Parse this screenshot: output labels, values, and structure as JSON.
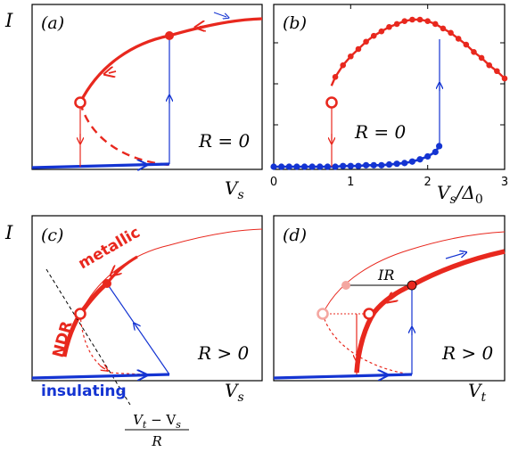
{
  "colors": {
    "red": "#e8281e",
    "blue": "#1434d2",
    "pale_red": "#f4a7a1",
    "black": "#000000"
  },
  "panels": {
    "a": {
      "label": "(a)",
      "y_label": "I",
      "x_label": "V",
      "x_sub": "s",
      "condition": "R = 0"
    },
    "b": {
      "label": "(b)",
      "condition": "R = 0",
      "x_label": "V",
      "x_sub": "s",
      "x_div": "/Δ",
      "x_div_sub": "0",
      "x_ticks": [
        "0",
        "1",
        "2",
        "3"
      ]
    },
    "c": {
      "label": "(c)",
      "y_label": "I",
      "x_label": "V",
      "x_sub": "s",
      "condition": "R > 0",
      "metallic": "metallic",
      "ndr": "NDR",
      "insulating": "insulating",
      "fraction_num": "V",
      "fraction_num_sub1": "t",
      "fraction_minus": " − V",
      "fraction_num_sub2": "s",
      "fraction_den": "R"
    },
    "d": {
      "label": "(d)",
      "x_label": "V",
      "x_sub": "t",
      "condition": "R > 0",
      "ir_label": "IR"
    }
  },
  "chart_data": [
    {
      "type": "line",
      "panel": "b",
      "title": "",
      "xlabel": "Vs/Δ0",
      "xlim": [
        0,
        3
      ],
      "series": [
        {
          "name": "",
          "color": "#e8281e",
          "x": [
            0.75,
            0.8,
            0.9,
            1.0,
            1.1,
            1.2,
            1.3,
            1.4,
            1.5,
            1.6,
            1.7,
            1.8,
            1.9,
            2.0,
            2.1,
            2.2,
            2.3,
            2.4,
            2.5,
            2.6,
            2.7,
            2.8,
            2.9,
            3.0
          ],
          "y": [
            0.55,
            0.61,
            0.69,
            0.75,
            0.8,
            0.85,
            0.89,
            0.92,
            0.95,
            0.97,
            0.99,
            1.0,
            1.0,
            0.99,
            0.97,
            0.94,
            0.91,
            0.87,
            0.83,
            0.78,
            0.74,
            0.69,
            0.65,
            0.6
          ]
        },
        {
          "name": "",
          "color": "#1434d2",
          "x": [
            0.0,
            0.1,
            0.2,
            0.3,
            0.4,
            0.5,
            0.6,
            0.7,
            0.8,
            0.9,
            1.0,
            1.1,
            1.2,
            1.3,
            1.4,
            1.5,
            1.6,
            1.7,
            1.8,
            1.9,
            2.0,
            2.1,
            2.15
          ],
          "y": [
            0.0,
            0.0,
            0.0,
            0.0,
            0.0,
            0.0,
            0.0,
            0.0,
            0.0,
            0.005,
            0.005,
            0.005,
            0.01,
            0.01,
            0.01,
            0.015,
            0.02,
            0.025,
            0.035,
            0.05,
            0.07,
            0.1,
            0.14
          ]
        }
      ]
    }
  ]
}
